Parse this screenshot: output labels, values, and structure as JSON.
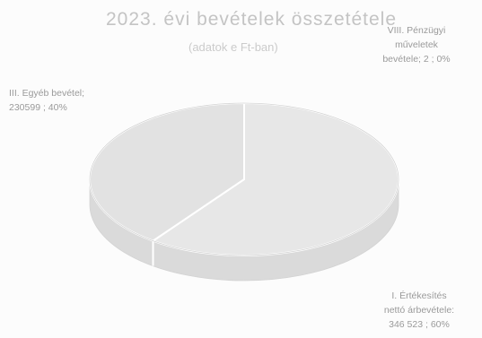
{
  "chart_data": {
    "type": "pie",
    "title": "2023. évi bevételek összetétele",
    "subtitle": "(adatok e Ft-ban)",
    "slices": [
      {
        "name": "I. Értékesítés nettó árbevétele",
        "value": 346523,
        "percent": 60,
        "label_lines": [
          "I. Értékesítés",
          "nettó árbevétele:",
          "346 523 ; 60%"
        ]
      },
      {
        "name": "III. Egyéb bevétel",
        "value": 230599,
        "percent": 40,
        "label_lines": [
          "III. Egyéb bevétel;",
          "230599 ; 40%"
        ]
      },
      {
        "name": "VIII. Pénzügyi műveletek bevétele",
        "value": 2,
        "percent": 0,
        "label_lines": [
          "VIII. Pénzügyi",
          "műveletek",
          "bevétele; 2 ; 0%"
        ]
      }
    ],
    "colors": {
      "top_face": "#e7e7e7",
      "top_face_alt": "#e2e2e2",
      "side_face": "#dadada",
      "divider": "#ffffff",
      "rim": "#d3d3d3"
    },
    "legend": "none",
    "grid": false
  }
}
